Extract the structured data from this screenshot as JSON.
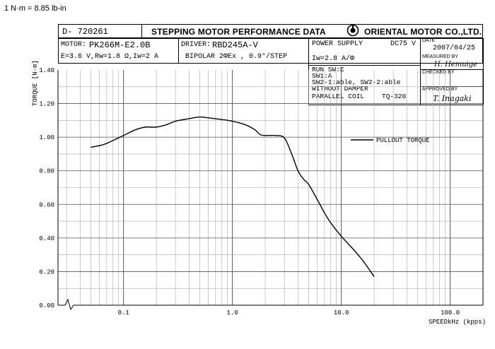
{
  "unit_note": "1 N·m = 8.85 lb-in",
  "header": {
    "doc_no": "D- 720261",
    "title": "STEPPING MOTOR PERFORMANCE DATA",
    "company": "ORIENTAL MOTOR CO.,LTD."
  },
  "specs": {
    "motor_label": "MOTOR:",
    "motor": "PK266M-E2.0B",
    "electrical": "E=3.6 V,Rw=1.8 Ω,Iw=2 A",
    "driver_label": "DRIVER:",
    "driver": "RBD245A-V",
    "mode": "BIPOLAR  2ΦEx ,  0.9°/STEP",
    "power_label": "POWER SUPPLY",
    "power_value": "DC75 V",
    "current": "Iw=2.8  A/Φ",
    "settings": [
      "RUN SW:E",
      "SW1:A",
      "SW2-1:able, SW2-2:able",
      "WITHOUT DAMPER"
    ],
    "coil": "PARALLEL COIL",
    "test_no": "TQ-320"
  },
  "approval": {
    "date_label": "DATE",
    "date": "2007/04/25",
    "measured_label": "MEASURED BY",
    "measured_sig": "H. Hemuige",
    "checked_label": "CHECKED BY",
    "checked_sig": "",
    "approved_label": "APPROVED BY",
    "approved_sig": "T. Inagaki"
  },
  "chart_data": {
    "type": "line",
    "title": "",
    "xlabel": "SPEEDkHz (kpps)",
    "ylabel": "TORQUE [N·m]",
    "x_scale": "log",
    "xlim": [
      0.025,
      200
    ],
    "ylim": [
      0,
      1.4
    ],
    "x_ticks": [
      0.1,
      1.0,
      10.0,
      100.0
    ],
    "x_tick_labels": [
      "0.1",
      "1.0",
      "10.0",
      "100.0"
    ],
    "y_ticks": [
      0,
      0.2,
      0.4,
      0.6,
      0.8,
      1.0,
      1.2,
      1.4
    ],
    "y_tick_labels": [
      "0.00",
      "0.20",
      "0.40",
      "0.60",
      "0.80",
      "1.00",
      "1.20",
      "1.40"
    ],
    "grid": true,
    "legend_position": "right",
    "series": [
      {
        "name": "PULLOUT TORQUE",
        "x": [
          0.05,
          0.065,
          0.08,
          0.1,
          0.13,
          0.16,
          0.2,
          0.25,
          0.3,
          0.4,
          0.5,
          0.6,
          0.8,
          1.0,
          1.3,
          1.6,
          1.8,
          2.0,
          2.5,
          3.0,
          3.5,
          4.0,
          4.5,
          5.0,
          6.0,
          7.0,
          8.0,
          10.0,
          13.0,
          16.0,
          20.0
        ],
        "y": [
          0.94,
          0.955,
          0.98,
          1.01,
          1.045,
          1.06,
          1.06,
          1.075,
          1.095,
          1.11,
          1.12,
          1.115,
          1.105,
          1.095,
          1.075,
          1.045,
          1.015,
          1.01,
          1.01,
          0.995,
          0.9,
          0.8,
          0.75,
          0.72,
          0.63,
          0.55,
          0.49,
          0.41,
          0.33,
          0.26,
          0.17
        ]
      }
    ]
  }
}
